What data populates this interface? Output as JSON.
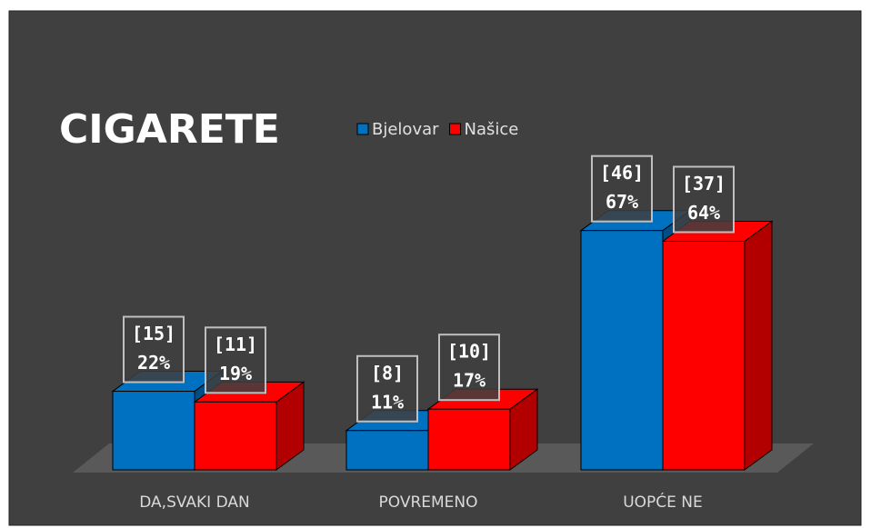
{
  "chart_data": {
    "type": "bar3d",
    "title": "CIGARETE",
    "categories": [
      "DA,SVAKI DAN",
      "POVREMENO",
      "UOPĆE NE"
    ],
    "series": [
      {
        "name": "Bjelovar",
        "color": "#0070c0",
        "values": [
          22,
          11,
          67
        ],
        "value_labels": [
          "22%",
          "11%",
          "67%"
        ],
        "count_labels": [
          "[15]",
          "[8]",
          "[46]"
        ]
      },
      {
        "name": "Našice",
        "color": "#ff0000",
        "values": [
          19,
          17,
          64
        ],
        "value_labels": [
          "19%",
          "17%",
          "64%"
        ],
        "count_labels": [
          "[11]",
          "[10]",
          "[37]"
        ]
      }
    ],
    "legend": "top"
  }
}
